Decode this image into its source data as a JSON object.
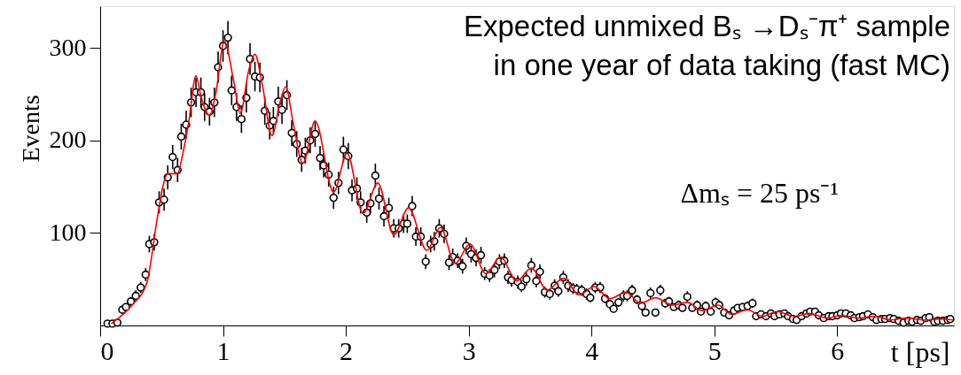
{
  "chart_data": {
    "type": "scatter",
    "xlabel": "t [ps]",
    "ylabel": "Events",
    "xlim": [
      0,
      6.95
    ],
    "ylim": [
      0,
      345
    ],
    "xticks": [
      0,
      1,
      2,
      3,
      4,
      5,
      6
    ],
    "yticks": [
      100,
      200,
      300
    ],
    "grid": false,
    "marker": "circle",
    "annotations": [
      "Expected unmixed Bₛ →Dₛ⁻π⁺ sample",
      "in one year of data taking (fast MC)",
      "Δmₛ = 25 ps⁻¹"
    ],
    "series": [
      {
        "color": "#000000",
        "x": [
          0.06,
          0.1,
          0.14,
          0.18,
          0.21,
          0.25,
          0.29,
          0.33,
          0.37,
          0.4,
          0.44,
          0.48,
          0.52,
          0.55,
          0.59,
          0.63,
          0.66,
          0.7,
          0.74,
          0.78,
          0.82,
          0.85,
          0.89,
          0.93,
          0.96,
          1.0,
          1.04,
          1.07,
          1.11,
          1.15,
          1.19,
          1.22,
          1.26,
          1.3,
          1.34,
          1.38,
          1.41,
          1.45,
          1.48,
          1.52,
          1.56,
          1.6,
          1.64,
          1.67,
          1.71,
          1.75,
          1.79,
          1.82,
          1.86,
          1.9,
          1.94,
          1.98,
          2.02,
          2.05,
          2.09,
          2.12,
          2.17,
          2.2,
          2.24,
          2.27,
          2.31,
          2.35,
          2.39,
          2.43,
          2.47,
          2.5,
          2.54,
          2.57,
          2.61,
          2.65,
          2.69,
          2.72,
          2.76,
          2.8,
          2.84,
          2.87,
          2.91,
          2.95,
          2.98,
          3.02,
          3.06,
          3.1,
          3.13,
          3.17,
          3.21,
          3.25,
          3.29,
          3.32,
          3.35,
          3.4,
          3.43,
          3.47,
          3.51,
          3.55,
          3.58,
          3.62,
          3.66,
          3.7,
          3.73,
          3.77,
          3.81,
          3.85,
          3.88,
          3.92,
          3.96,
          3.99,
          4.03,
          4.07,
          4.11,
          4.15,
          4.18,
          4.22,
          4.26,
          4.29,
          4.33,
          4.37,
          4.41,
          4.44,
          4.48,
          4.52,
          4.56,
          4.6,
          4.63,
          4.67,
          4.71,
          4.74,
          4.78,
          4.82,
          4.86,
          4.89,
          4.93,
          4.97,
          5.01,
          5.04,
          5.08,
          5.12,
          5.16,
          5.19,
          5.23,
          5.27,
          5.31,
          5.34,
          5.38,
          5.42,
          5.46,
          5.49,
          5.53,
          5.57,
          5.6,
          5.64,
          5.67,
          5.71,
          5.75,
          5.78,
          5.82,
          5.85,
          5.89,
          5.93,
          5.96,
          6.0,
          6.03,
          6.07,
          6.11,
          6.14,
          6.18,
          6.21,
          6.25,
          6.29,
          6.32,
          6.36,
          6.39,
          6.43,
          6.46,
          6.5,
          6.54,
          6.58,
          6.61,
          6.65,
          6.68,
          6.72,
          6.75,
          6.79,
          6.82,
          6.86,
          6.9,
          6.92
        ],
        "values": [
          2,
          2,
          3,
          17,
          20,
          26,
          32,
          41,
          55,
          88,
          90,
          133,
          136,
          160,
          182,
          168,
          204,
          217,
          241,
          252,
          252,
          236,
          231,
          241,
          279,
          302,
          311,
          254,
          236,
          223,
          246,
          288,
          269,
          268,
          232,
          216,
          221,
          242,
          233,
          249,
          208,
          196,
          179,
          189,
          200,
          207,
          181,
          173,
          163,
          138,
          154,
          190,
          183,
          146,
          148,
          133,
          122,
          132,
          162,
          137,
          118,
          127,
          105,
          105,
          110,
          110,
          129,
          96,
          96,
          69,
          88,
          91,
          105,
          99,
          68,
          74,
          70,
          64,
          86,
          77,
          73,
          76,
          56,
          54,
          60,
          69,
          70,
          52,
          49,
          47,
          42,
          50,
          65,
          48,
          58,
          36,
          34,
          43,
          37,
          52,
          43,
          40,
          39,
          38,
          34,
          30,
          41,
          41,
          29,
          23,
          18,
          25,
          32,
          32,
          38,
          28,
          21,
          14,
          35,
          14,
          38,
          24,
          26,
          20,
          22,
          19,
          31,
          19,
          22,
          15,
          21,
          15,
          25,
          22,
          14,
          11,
          16,
          19,
          20,
          21,
          24,
          10,
          12,
          10,
          13,
          10,
          12,
          13,
          10,
          7,
          6,
          10,
          13,
          15,
          15,
          11,
          8,
          10,
          10,
          11,
          13,
          13,
          11,
          8,
          9,
          10,
          12,
          9,
          6,
          7,
          7,
          8,
          7,
          5,
          3,
          5,
          4,
          6,
          5,
          8,
          9,
          4,
          5,
          5,
          6,
          7
        ],
        "errors": [
          1,
          1,
          2,
          4,
          4,
          5,
          6,
          6,
          7,
          9,
          9,
          12,
          12,
          13,
          13,
          13,
          14,
          15,
          16,
          16,
          16,
          15,
          15,
          16,
          17,
          17,
          18,
          16,
          15,
          15,
          16,
          17,
          16,
          16,
          15,
          15,
          15,
          16,
          15,
          16,
          14,
          14,
          13,
          14,
          14,
          14,
          13,
          13,
          13,
          12,
          12,
          14,
          14,
          12,
          12,
          12,
          11,
          11,
          13,
          12,
          11,
          11,
          10,
          10,
          10,
          10,
          11,
          10,
          10,
          8,
          9,
          10,
          10,
          10,
          8,
          9,
          8,
          8,
          9,
          9,
          9,
          9,
          7,
          7,
          8,
          8,
          8,
          7,
          7,
          7,
          6,
          7,
          8,
          7,
          8,
          6,
          6,
          7,
          6,
          7,
          7,
          6,
          6,
          6,
          6,
          5,
          6,
          6,
          5,
          5,
          4,
          5,
          6,
          6,
          6,
          5,
          5,
          4,
          6,
          4,
          6,
          5,
          5,
          4,
          5,
          4,
          6,
          4,
          5,
          4,
          5,
          4,
          5,
          5,
          4,
          3,
          4,
          4,
          4,
          5,
          5,
          3,
          3,
          3,
          4,
          3,
          3,
          4,
          3,
          3,
          2,
          3,
          4,
          4,
          4,
          3,
          3,
          3,
          3,
          3,
          4,
          4,
          3,
          3,
          3,
          3,
          3,
          3,
          2,
          3,
          3,
          3,
          3,
          2,
          2,
          2,
          2,
          2,
          2,
          3,
          3,
          2,
          2,
          2,
          2,
          3
        ]
      },
      {
        "type": "line",
        "color": "#ff0000",
        "marker": "none",
        "line_style": "solid",
        "x": [
          0.09,
          0.26,
          0.38,
          0.46,
          0.51,
          0.55,
          0.63,
          0.67,
          0.72,
          0.78,
          0.82,
          0.89,
          0.94,
          1.01,
          1.09,
          1.14,
          1.21,
          1.26,
          1.32,
          1.4,
          1.46,
          1.51,
          1.57,
          1.65,
          1.75,
          1.9,
          2.01,
          2.14,
          2.26,
          2.39,
          2.51,
          2.66,
          2.77,
          2.89,
          3.01,
          3.14,
          3.26,
          3.39,
          3.51,
          3.64,
          3.77,
          3.9,
          4.02,
          4.15,
          4.28,
          4.4,
          4.52,
          4.66,
          4.78,
          4.9,
          5.03,
          5.14,
          5.27,
          5.39,
          5.51,
          5.65,
          5.77,
          5.92,
          6.03,
          6.18,
          6.3,
          6.44,
          6.56,
          6.71,
          6.83,
          6.94
        ],
        "values": [
          2,
          22,
          46,
          112,
          150,
          164,
          164,
          184,
          219,
          270,
          248,
          227,
          250,
          307,
          262,
          229,
          276,
          293,
          260,
          205,
          239,
          258,
          220,
          175,
          221,
          144,
          186,
          121,
          154,
          98,
          127,
          81,
          106,
          67,
          88,
          56,
          74,
          48,
          62,
          38,
          51,
          33,
          42,
          29,
          36,
          24,
          30,
          22,
          25,
          16,
          22,
          12,
          17,
          10,
          15,
          10,
          13,
          8,
          11,
          8,
          10,
          6,
          8,
          6,
          7,
          6
        ]
      }
    ]
  }
}
